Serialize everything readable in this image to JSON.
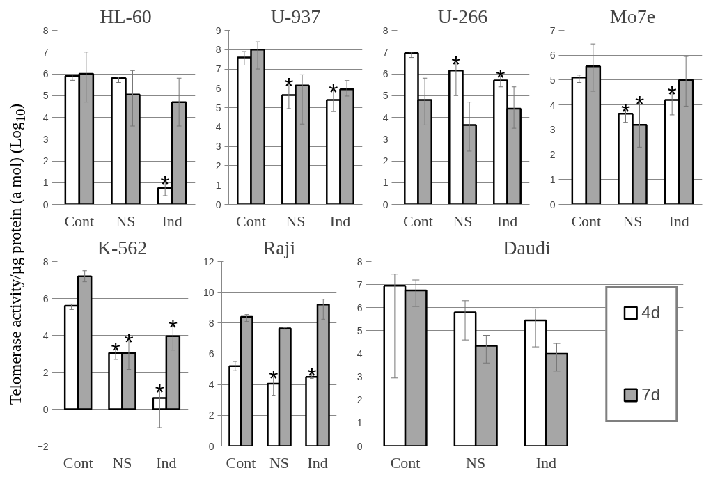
{
  "chart_data": [
    {
      "type": "bar",
      "title": "HL-60",
      "ylabel": "Telomerase activity/µg protein (a mol) (Log$_{10}$)",
      "categories": [
        "Cont",
        "NS",
        "Ind"
      ],
      "ylim": [
        0,
        8
      ],
      "yticks": [
        0,
        1,
        2,
        3,
        4,
        5,
        6,
        7,
        8
      ],
      "grid": "y",
      "series": [
        {
          "color": "#ffffff",
          "values": [
            5.9,
            5.8,
            0.75
          ],
          "errors": [
            [
              5.7,
              5.95
            ],
            [
              5.6,
              5.85
            ],
            [
              0.4,
              1.0
            ]
          ],
          "value_labels": [
            null,
            null,
            "*"
          ]
        },
        {
          "color": "#a6a6a6",
          "values": [
            6.0,
            5.05,
            4.7
          ],
          "errors": [
            [
              4.7,
              7.0
            ],
            [
              3.6,
              6.15
            ],
            [
              3.6,
              5.8
            ]
          ],
          "value_labels": [
            null,
            null,
            null
          ]
        }
      ]
    },
    {
      "type": "bar",
      "title": "U-937",
      "categories": [
        "Cont",
        "NS",
        "Ind"
      ],
      "ylim": [
        0,
        9
      ],
      "yticks": [
        0,
        1,
        2,
        3,
        4,
        5,
        6,
        7,
        8,
        9
      ],
      "grid": "y",
      "series": [
        {
          "color": "#ffffff",
          "values": [
            7.6,
            5.65,
            5.4
          ],
          "errors": [
            [
              7.2,
              7.9
            ],
            [
              4.95,
              6.2
            ],
            [
              4.8,
              5.9
            ]
          ],
          "value_labels": [
            null,
            "*",
            "*"
          ]
        },
        {
          "color": "#a6a6a6",
          "values": [
            8.0,
            6.15,
            5.95
          ],
          "errors": [
            [
              7.0,
              8.4
            ],
            [
              4.15,
              6.7
            ],
            [
              5.6,
              6.4
            ]
          ],
          "value_labels": [
            null,
            null,
            null
          ]
        }
      ]
    },
    {
      "type": "bar",
      "title": "U-266",
      "categories": [
        "Cont",
        "NS",
        "Ind"
      ],
      "ylim": [
        0,
        8
      ],
      "yticks": [
        0,
        1,
        2,
        3,
        4,
        5,
        6,
        7,
        8
      ],
      "grid": "y",
      "series": [
        {
          "color": "#ffffff",
          "values": [
            6.95,
            6.15,
            5.7
          ],
          "errors": [
            [
              6.75,
              7.0
            ],
            [
              5.0,
              6.5
            ],
            [
              5.4,
              5.9
            ]
          ],
          "value_labels": [
            null,
            "*",
            "*"
          ]
        },
        {
          "color": "#a6a6a6",
          "values": [
            4.8,
            3.65,
            4.4
          ],
          "errors": [
            [
              3.65,
              5.8
            ],
            [
              2.45,
              4.7
            ],
            [
              3.5,
              5.4
            ]
          ],
          "value_labels": [
            null,
            null,
            null
          ]
        }
      ]
    },
    {
      "type": "bar",
      "title": "Mo7e",
      "categories": [
        "Cont",
        "NS",
        "Ind"
      ],
      "ylim": [
        0,
        7
      ],
      "yticks": [
        0,
        1,
        2,
        3,
        4,
        5,
        6,
        7
      ],
      "grid": "y",
      "series": [
        {
          "color": "#ffffff",
          "values": [
            5.1,
            3.65,
            4.2
          ],
          "errors": [
            [
              4.9,
              5.2
            ],
            [
              3.3,
              3.8
            ],
            [
              3.6,
              4.5
            ]
          ],
          "value_labels": [
            null,
            "*",
            "*"
          ]
        },
        {
          "color": "#a6a6a6",
          "values": [
            5.55,
            3.2,
            5.0
          ],
          "errors": [
            [
              4.55,
              6.45
            ],
            [
              2.3,
              4.1
            ],
            [
              3.95,
              5.95
            ]
          ],
          "value_labels": [
            null,
            "*",
            null
          ]
        }
      ]
    },
    {
      "type": "bar",
      "title": "K-562",
      "categories": [
        "Cont",
        "NS",
        "Ind"
      ],
      "ylim": [
        -2,
        8
      ],
      "yticks": [
        -2,
        0,
        2,
        4,
        6,
        8
      ],
      "grid": "y",
      "series": [
        {
          "color": "#ffffff",
          "values": [
            5.6,
            3.05,
            0.6
          ],
          "errors": [
            [
              5.4,
              5.7
            ],
            [
              2.7,
              3.25
            ],
            [
              -1.0,
              1.0
            ]
          ],
          "value_labels": [
            null,
            "*",
            "*"
          ]
        },
        {
          "color": "#a6a6a6",
          "values": [
            7.2,
            3.05,
            3.95
          ],
          "errors": [
            [
              6.9,
              7.5
            ],
            [
              2.15,
              3.7
            ],
            [
              3.2,
              4.5
            ]
          ],
          "value_labels": [
            null,
            "*",
            "*"
          ]
        }
      ]
    },
    {
      "type": "bar",
      "title": "Raji",
      "categories": [
        "Cont",
        "NS",
        "Ind"
      ],
      "ylim": [
        0,
        12
      ],
      "yticks": [
        0,
        2,
        4,
        6,
        8,
        10,
        12
      ],
      "grid": "y",
      "series": [
        {
          "color": "#ffffff",
          "values": [
            5.2,
            4.05,
            4.5
          ],
          "errors": [
            [
              4.9,
              5.5
            ],
            [
              3.3,
              4.5
            ],
            [
              4.4,
              4.7
            ]
          ],
          "value_labels": [
            null,
            "*",
            "*"
          ]
        },
        {
          "color": "#a6a6a6",
          "values": [
            8.4,
            7.65,
            9.2
          ],
          "errors": [
            [
              8.1,
              8.55
            ],
            [
              7.6,
              7.7
            ],
            [
              8.25,
              9.55
            ]
          ],
          "value_labels": [
            null,
            null,
            null
          ]
        }
      ]
    },
    {
      "type": "bar",
      "title": "Daudi",
      "categories": [
        "Cont",
        "NS",
        "Ind"
      ],
      "ylim": [
        0,
        8
      ],
      "yticks": [
        0,
        1,
        2,
        3,
        4,
        5,
        6,
        7,
        8
      ],
      "grid": "y",
      "legend": "right",
      "series": [
        {
          "name": "4d",
          "color": "#ffffff",
          "values": [
            6.95,
            5.8,
            5.45
          ],
          "errors": [
            [
              2.95,
              7.45
            ],
            [
              4.6,
              6.3
            ],
            [
              4.3,
              5.95
            ]
          ],
          "value_labels": [
            null,
            null,
            null
          ]
        },
        {
          "name": "7d",
          "color": "#a6a6a6",
          "values": [
            6.75,
            4.35,
            4.0
          ],
          "errors": [
            [
              6.05,
              7.2
            ],
            [
              3.6,
              4.8
            ],
            [
              3.25,
              4.45
            ]
          ],
          "value_labels": [
            null,
            null,
            null
          ]
        }
      ]
    }
  ]
}
